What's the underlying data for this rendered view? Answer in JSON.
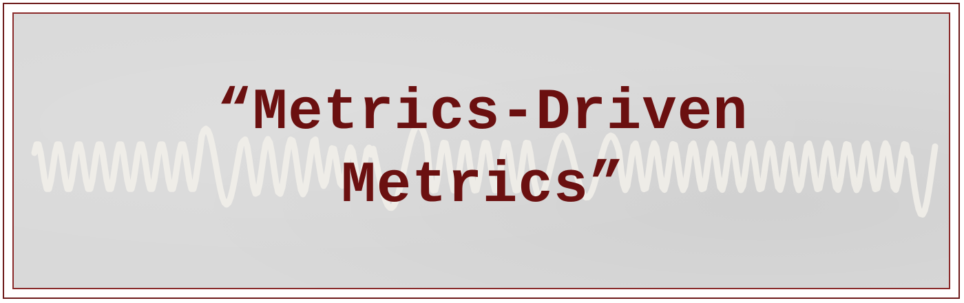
{
  "colors": {
    "frame": "#6d1a1a",
    "panel_border": "#8a2a2a",
    "panel_bg": "#d9d9d9",
    "wave": "#f2f0ea",
    "title_text": "#6b1010"
  },
  "background": {
    "description_icon": "oscilloscope-wave-icon"
  },
  "title": {
    "line1": "“Metrics-Driven",
    "line2": "Metrics”"
  }
}
